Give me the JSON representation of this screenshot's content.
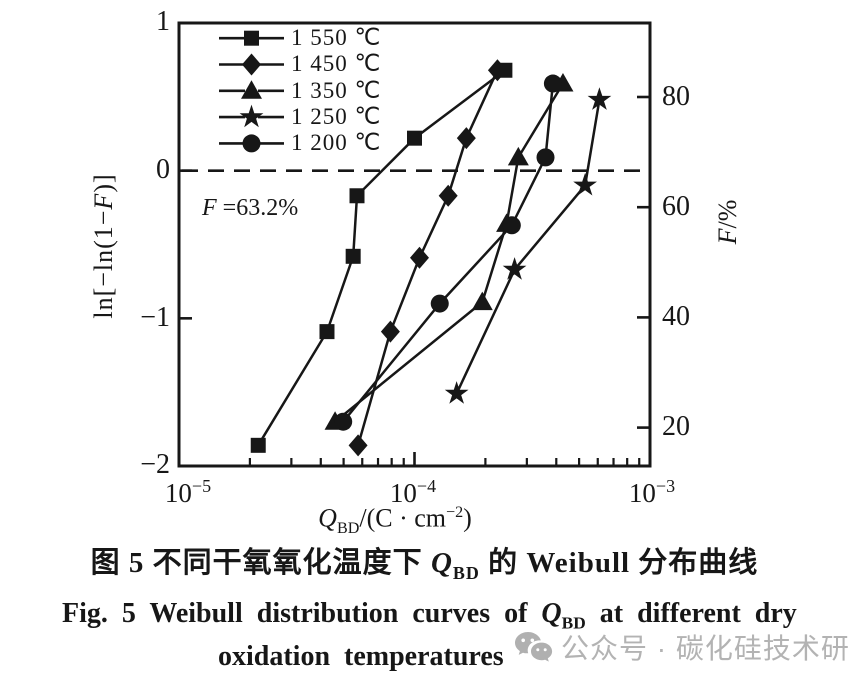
{
  "figure": {
    "caption_zh": {
      "pre": "图 5  不同干氧氧化温度下 ",
      "q": "Q",
      "q_sub": "BD",
      "post": " 的 Weibull 分布曲线"
    },
    "caption_en": {
      "line1_pre": "Fig. 5  Weibull distribution curves of ",
      "q": "Q",
      "q_sub": "BD",
      "line1_post": " at different dry",
      "line2": "oxidation temperatures"
    },
    "watermark": {
      "icon": "wechat-icon",
      "text": "公众号 · 碳化硅技术研究",
      "color": "#b3b3b3"
    }
  },
  "chart_data": {
    "type": "line",
    "title": "",
    "x_scale": "log",
    "xlim": [
      1e-05,
      0.001
    ],
    "ylim_left": [
      -2,
      1
    ],
    "grid": false,
    "legend_position": "top-left-inside",
    "ink_color": "#171717",
    "xlabel": {
      "q": "Q",
      "q_sub": "BD",
      "mid": "/(C · cm",
      "exp": "−2",
      "end": ")"
    },
    "ylabel_left": {
      "pre": "ln[−ln(1−",
      "f": "F",
      "post": ")]"
    },
    "ylabel_right": {
      "f": "F",
      "rest": "/%"
    },
    "annotation": {
      "f": "F",
      "text": " =63.2%"
    },
    "dashed_line_at_ln": 0,
    "left_tick_labels": [
      "1",
      "0",
      "−1",
      "−2"
    ],
    "left_tick_values": [
      1,
      0,
      -1,
      -2
    ],
    "right_tick_labels": [
      "80",
      "60",
      "40",
      "20"
    ],
    "right_tick_values": [
      80,
      60,
      40,
      20
    ],
    "x_tick_labels": [
      {
        "base": "10",
        "exp": "−5"
      },
      {
        "base": "10",
        "exp": "−4"
      },
      {
        "base": "10",
        "exp": "−3"
      }
    ],
    "x_major_values": [
      1e-05,
      0.0001,
      0.001
    ],
    "series": [
      {
        "name": "1 550 ℃",
        "marker": "square",
        "points": [
          [
            2.17e-05,
            -1.86
          ],
          [
            4.25e-05,
            -1.09
          ],
          [
            5.49e-05,
            -0.58
          ],
          [
            5.7e-05,
            -0.17
          ],
          [
            0.0001,
            0.22
          ],
          [
            0.000242,
            0.68
          ]
        ]
      },
      {
        "name": "1 450 ℃",
        "marker": "diamond",
        "points": [
          [
            5.76e-05,
            -1.86
          ],
          [
            7.9e-05,
            -1.09
          ],
          [
            0.000105,
            -0.59
          ],
          [
            0.000139,
            -0.17
          ],
          [
            0.000166,
            0.22
          ],
          [
            0.000225,
            0.68
          ]
        ]
      },
      {
        "name": "1 350 ℃",
        "marker": "triangle",
        "points": [
          [
            4.6e-05,
            -1.7
          ],
          [
            0.000194,
            -0.89
          ],
          [
            0.000246,
            -0.36
          ],
          [
            0.000276,
            0.09
          ],
          [
            0.000427,
            0.59
          ]
        ]
      },
      {
        "name": "1 250 ℃",
        "marker": "star",
        "points": [
          [
            0.000151,
            -1.51
          ],
          [
            0.000266,
            -0.67
          ],
          [
            0.00053,
            -0.1
          ],
          [
            0.00061,
            0.48
          ]
        ]
      },
      {
        "name": "1 200 ℃",
        "marker": "circle",
        "points": [
          [
            4.98e-05,
            -1.7
          ],
          [
            0.000128,
            -0.9
          ],
          [
            0.000259,
            -0.37
          ],
          [
            0.00036,
            0.09
          ],
          [
            0.000387,
            0.59
          ]
        ]
      }
    ]
  }
}
